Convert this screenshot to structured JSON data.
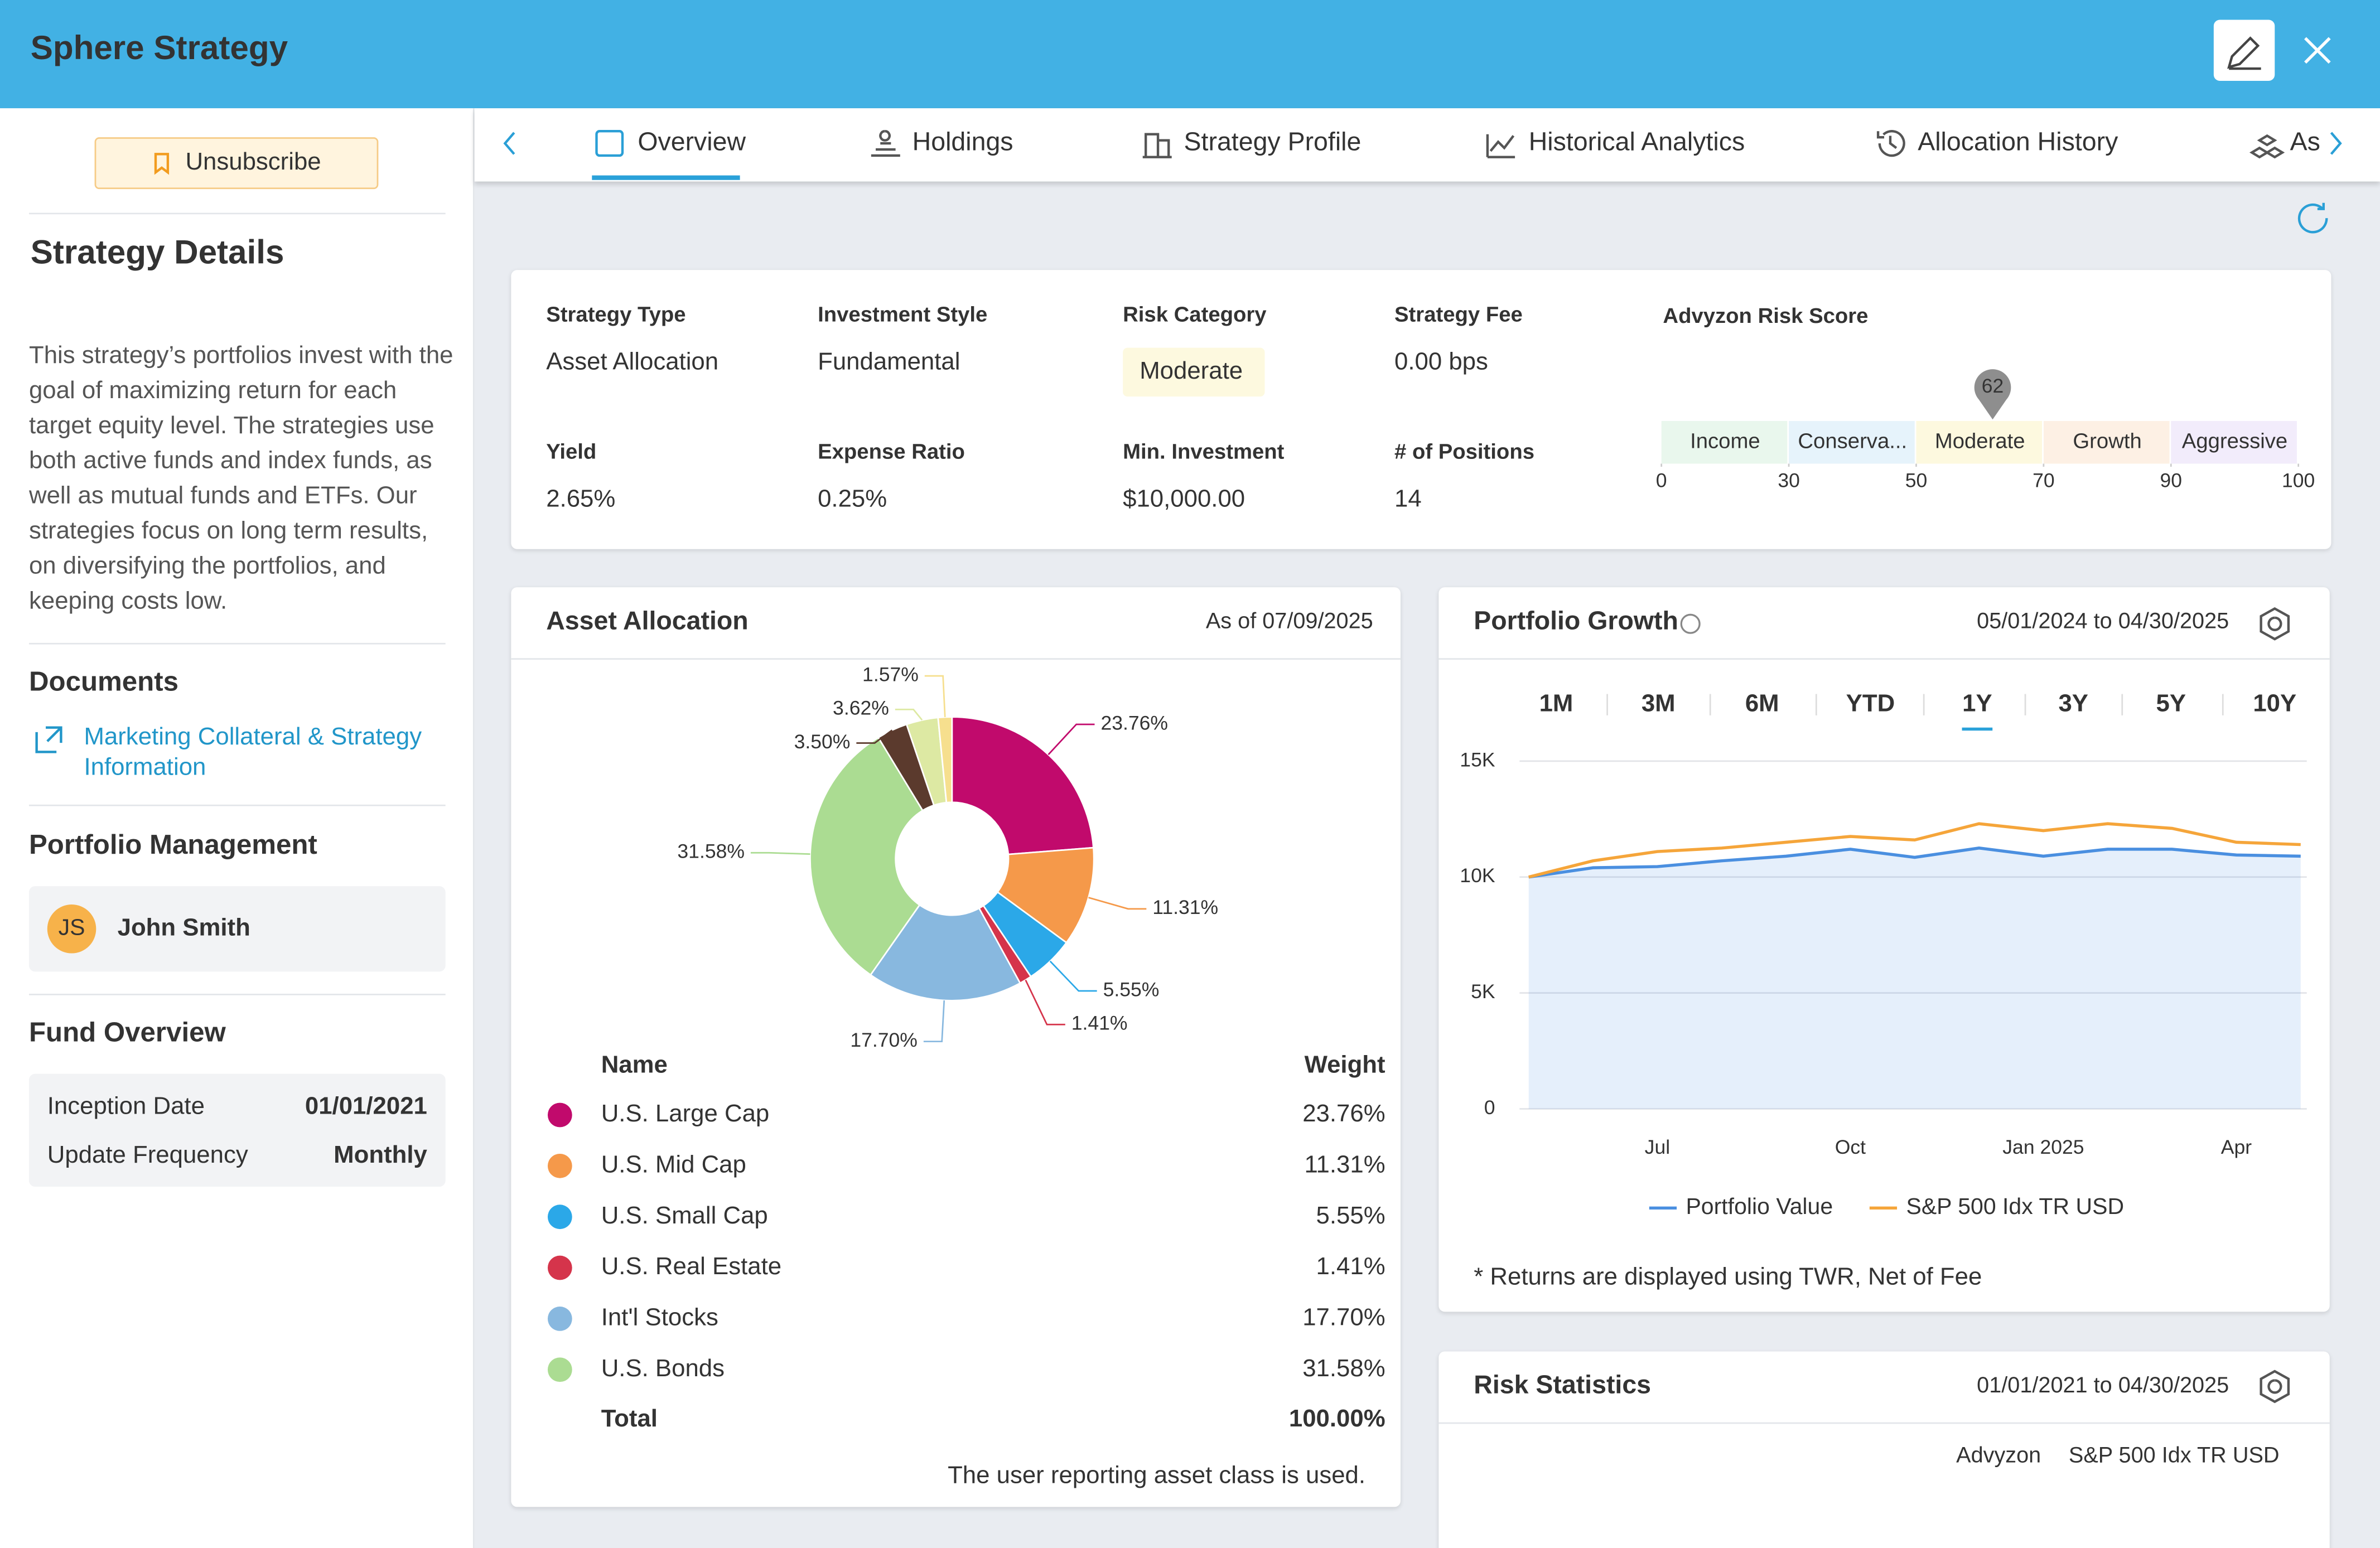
{
  "header": {
    "title": "Sphere Strategy"
  },
  "sidebar": {
    "unsubscribe": "Unsubscribe",
    "details_title": "Strategy Details",
    "description": "This strategy’s portfolios invest with the goal of maximizing return for each target equity level. The strategies use both active funds and index funds, as well as mutual funds and ETFs. Our strategies focus on long term results, on diversifying the portfolios, and keeping costs low.",
    "documents_title": "Documents",
    "document_link": "Marketing Collateral & Strategy Information",
    "management_title": "Portfolio Management",
    "manager_initials": "JS",
    "manager_name": "John Smith",
    "fund_title": "Fund Overview",
    "fund_rows": [
      [
        "Inception Date",
        "01/01/2021"
      ],
      [
        "Update Frequency",
        "Monthly"
      ]
    ]
  },
  "tabs": [
    "Overview",
    "Holdings",
    "Strategy Profile",
    "Historical Analytics",
    "Allocation History",
    "As"
  ],
  "active_tab": 0,
  "summary": {
    "fields": [
      {
        "label": "Strategy Type",
        "value": "Asset Allocation"
      },
      {
        "label": "Investment Style",
        "value": "Fundamental"
      },
      {
        "label": "Risk Category",
        "value": "Moderate"
      },
      {
        "label": "Strategy Fee",
        "value": "0.00 bps"
      },
      {
        "label": "Yield",
        "value": "2.65%"
      },
      {
        "label": "Expense Ratio",
        "value": "0.25%"
      },
      {
        "label": "Min. Investment",
        "value": "$10,000.00"
      },
      {
        "label": "# of Positions",
        "value": "14"
      }
    ],
    "risk_score": {
      "title": "Advyzon Risk Score",
      "score": 62,
      "bands": [
        {
          "label": "Income",
          "color": "#e9f7ed",
          "text_color": "#47c26a"
        },
        {
          "label": "Conserva...",
          "color": "#e6f3fb",
          "text_color": "#2a9fd6"
        },
        {
          "label": "Moderate",
          "color": "#fdf9df",
          "text_color": "#e2b700"
        },
        {
          "label": "Growth",
          "color": "#fdf0e4",
          "text_color": "#e8872c"
        },
        {
          "label": "Aggressive",
          "color": "#f2ecfb",
          "text_color": "#9b6ee0"
        }
      ],
      "ticks": [
        0,
        30,
        50,
        70,
        90,
        100
      ]
    }
  },
  "asset_allocation": {
    "title": "Asset Allocation",
    "as_of": "As of 07/09/2025",
    "chart_data": {
      "type": "pie",
      "categories": [
        "U.S. Large Cap",
        "U.S. Mid Cap",
        "U.S. Small Cap",
        "U.S. Real Estate",
        "Int'l Stocks",
        "U.S. Bonds",
        null,
        null,
        null
      ],
      "values": [
        23.76,
        11.31,
        5.55,
        1.41,
        17.7,
        31.58,
        3.5,
        3.62,
        1.57
      ],
      "value_labels": [
        "23.76%",
        "11.31%",
        "5.55%",
        "1.41%",
        "17.70%",
        "31.58%",
        "3.50%",
        "3.62%",
        "1.57%"
      ],
      "colors": [
        "#c10a6c",
        "#f5994a",
        "#2ba8e8",
        "#d5344b",
        "#88b8df",
        "#abdc92",
        "#5b3a2d",
        "#dde9a3",
        "#f6df8e"
      ]
    },
    "table": {
      "headers": [
        "Name",
        "Weight"
      ],
      "total_label": "Total",
      "total": "100.00%"
    },
    "note": "The user reporting asset class is used."
  },
  "portfolio_growth": {
    "title": "Portfolio Growth",
    "range": "05/01/2024 to 04/30/2025",
    "periods": [
      "1M",
      "3M",
      "6M",
      "YTD",
      "1Y",
      "3Y",
      "5Y",
      "10Y"
    ],
    "active_period": 4,
    "chart_data": {
      "type": "line",
      "categories": [
        null,
        null,
        "Jul",
        null,
        null,
        "Oct",
        null,
        null,
        "Jan 2025",
        null,
        null,
        "Apr",
        null
      ],
      "series": [
        {
          "name": "Portfolio Value",
          "color": "#4a8fe0",
          "area": true,
          "values": [
            10000,
            10400,
            10450,
            10700,
            10900,
            11200,
            10850,
            11250,
            10900,
            11200,
            11200,
            10950,
            10900
          ]
        },
        {
          "name": "S&P 500 Idx TR USD",
          "color": "#f5a53a",
          "values": [
            10000,
            10700,
            11100,
            11250,
            11500,
            11750,
            11600,
            12300,
            12000,
            12300,
            12100,
            11500,
            11400
          ]
        }
      ],
      "ylim": [
        0,
        15000
      ],
      "yticks": [
        0,
        {
          "value": 5000,
          "label": "5K"
        },
        {
          "value": 10000,
          "label": "10K"
        },
        {
          "value": 15000,
          "label": "15K"
        }
      ],
      "grid": true
    },
    "note": "* Returns are displayed using TWR, Net of Fee"
  },
  "risk_statistics": {
    "title": "Risk Statistics",
    "range": "01/01/2021 to 04/30/2025",
    "columns": [
      "Advyzon",
      "S&P 500 Idx TR USD"
    ]
  }
}
